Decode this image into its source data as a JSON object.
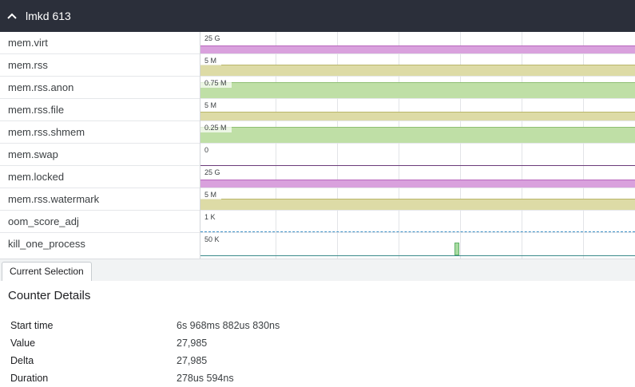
{
  "header": {
    "title": "lmkd 613"
  },
  "colors": {
    "pink": "#d9a1dd",
    "yellow": "#dddba6",
    "green": "#bfdfa6",
    "purple_line": "#6b3b7a",
    "blue_line": "#3b8ec4",
    "teal_line": "#3a8a8a"
  },
  "tracks": [
    {
      "label": "mem.virt",
      "scale": "25 G",
      "style": "pink",
      "level": 0.4
    },
    {
      "label": "mem.rss",
      "scale": "5 M",
      "style": "yellow",
      "level": 0.6
    },
    {
      "label": "mem.rss.anon",
      "scale": "0.75 M",
      "style": "green",
      "level": 0.85
    },
    {
      "label": "mem.rss.file",
      "scale": "5 M",
      "style": "yellow",
      "level": 0.45
    },
    {
      "label": "mem.rss.shmem",
      "scale": "0.25 M",
      "style": "green",
      "level": 0.85
    },
    {
      "label": "mem.swap",
      "scale": "0",
      "style": "purple-line",
      "level": 0
    },
    {
      "label": "mem.locked",
      "scale": "25 G",
      "style": "pink",
      "level": 0.4
    },
    {
      "label": "mem.rss.watermark",
      "scale": "5 M",
      "style": "yellow",
      "level": 0.6
    },
    {
      "label": "oom_score_adj",
      "scale": "1 K",
      "style": "blue-line",
      "level": 0
    },
    {
      "label": "kill_one_process",
      "scale": "50 K",
      "style": "teal-line",
      "level": 0,
      "spike_value": 27985
    }
  ],
  "selection_tab": {
    "label": "Current Selection"
  },
  "details": {
    "title": "Counter Details",
    "rows": [
      {
        "key": "Start time",
        "value": "6s 968ms 882us 830ns"
      },
      {
        "key": "Value",
        "value": "27,985"
      },
      {
        "key": "Delta",
        "value": "27,985"
      },
      {
        "key": "Duration",
        "value": "278us 594ns"
      }
    ]
  }
}
